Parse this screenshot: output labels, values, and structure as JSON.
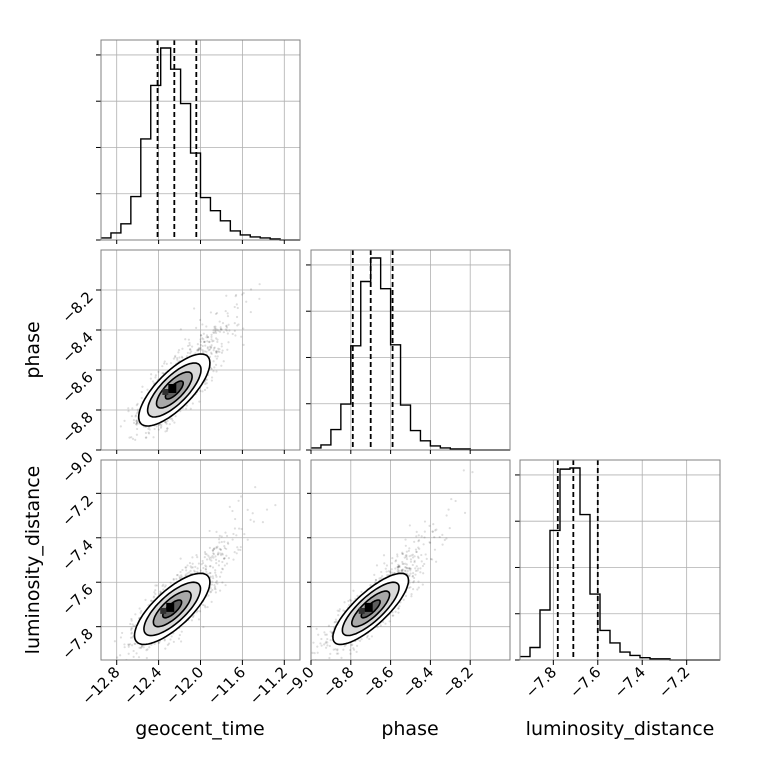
{
  "chart_data": {
    "type": "corner",
    "parameters": [
      "geocent_time",
      "phase",
      "luminosity_distance"
    ],
    "axes": {
      "geocent_time": {
        "label": "geocent_time",
        "range": [
          -12.95,
          -11.05
        ],
        "ticks": [
          -12.8,
          -12.4,
          -12.0,
          -11.6,
          -11.2
        ],
        "tick_labels": [
          "−12.8",
          "−12.4",
          "−12.0",
          "−11.6",
          "−11.2"
        ]
      },
      "phase": {
        "label": "phase",
        "range": [
          -9.0,
          -8.0
        ],
        "ticks": [
          -9.0,
          -8.8,
          -8.6,
          -8.4,
          -8.2
        ],
        "tick_labels": [
          "−9.0",
          "−8.8",
          "−8.6",
          "−8.4",
          "−8.2"
        ]
      },
      "luminosity_distance": {
        "label": "luminosity_distance",
        "range": [
          -7.95,
          -7.05
        ],
        "ticks": [
          -7.8,
          -7.6,
          -7.4,
          -7.2
        ],
        "tick_labels": [
          "−7.8",
          "−7.6",
          "−7.4",
          "−7.2"
        ]
      }
    },
    "histograms": [
      {
        "param": "geocent_time",
        "bin_edges": [
          -12.95,
          -12.855,
          -12.76,
          -12.665,
          -12.57,
          -12.475,
          -12.38,
          -12.285,
          -12.19,
          -12.095,
          -12.0,
          -11.905,
          -11.81,
          -11.715,
          -11.62,
          -11.525,
          -11.43,
          -11.335,
          -11.24,
          -11.145,
          -11.05
        ],
        "counts": [
          2,
          7,
          16,
          43,
          100,
          153,
          190,
          169,
          135,
          86,
          42,
          29,
          19,
          9,
          5,
          3,
          2,
          1,
          0,
          0
        ],
        "quantiles": [
          -12.41,
          -12.25,
          -12.04
        ]
      },
      {
        "param": "phase",
        "bin_edges": [
          -9.0,
          -8.95,
          -8.9,
          -8.85,
          -8.8,
          -8.75,
          -8.7,
          -8.65,
          -8.6,
          -8.55,
          -8.5,
          -8.45,
          -8.4,
          -8.35,
          -8.3,
          -8.25,
          -8.2,
          -8.15,
          -8.1,
          -8.05,
          -8.0
        ],
        "counts": [
          2,
          5,
          20,
          45,
          102,
          165,
          188,
          158,
          103,
          44,
          19,
          9,
          4,
          2,
          1,
          1,
          0,
          0,
          0,
          0
        ],
        "quantiles": [
          -8.79,
          -8.7,
          -8.59
        ]
      },
      {
        "param": "luminosity_distance",
        "bin_edges": [
          -7.95,
          -7.905,
          -7.86,
          -7.815,
          -7.77,
          -7.725,
          -7.68,
          -7.635,
          -7.59,
          -7.545,
          -7.5,
          -7.455,
          -7.41,
          -7.365,
          -7.32,
          -7.275,
          -7.23,
          -7.185,
          -7.14,
          -7.095,
          -7.05
        ],
        "counts": [
          3,
          11,
          44,
          114,
          168,
          169,
          128,
          58,
          26,
          15,
          7,
          4,
          2,
          1,
          1,
          0,
          0,
          0,
          0,
          0
        ],
        "quantiles": [
          -7.78,
          -7.71,
          -7.6
        ]
      }
    ],
    "pair_panels": [
      {
        "x": "geocent_time",
        "y": "phase",
        "center": [
          -12.25,
          -8.7
        ],
        "sigma": [
          0.17,
          0.09
        ],
        "correlation": 0.75,
        "contour_levels": [
          0.5,
          1.0,
          1.5,
          2.0
        ]
      },
      {
        "x": "geocent_time",
        "y": "luminosity_distance",
        "center": [
          -12.27,
          -7.72
        ],
        "sigma": [
          0.18,
          0.08
        ],
        "correlation": 0.75,
        "contour_levels": [
          0.5,
          1.0,
          1.5,
          2.0
        ]
      },
      {
        "x": "phase",
        "y": "luminosity_distance",
        "center": [
          -8.7,
          -7.72
        ],
        "sigma": [
          0.095,
          0.08
        ],
        "correlation": 0.8,
        "contour_levels": [
          0.5,
          1.0,
          1.5,
          2.0
        ]
      }
    ],
    "grid": true,
    "legend": "none"
  }
}
